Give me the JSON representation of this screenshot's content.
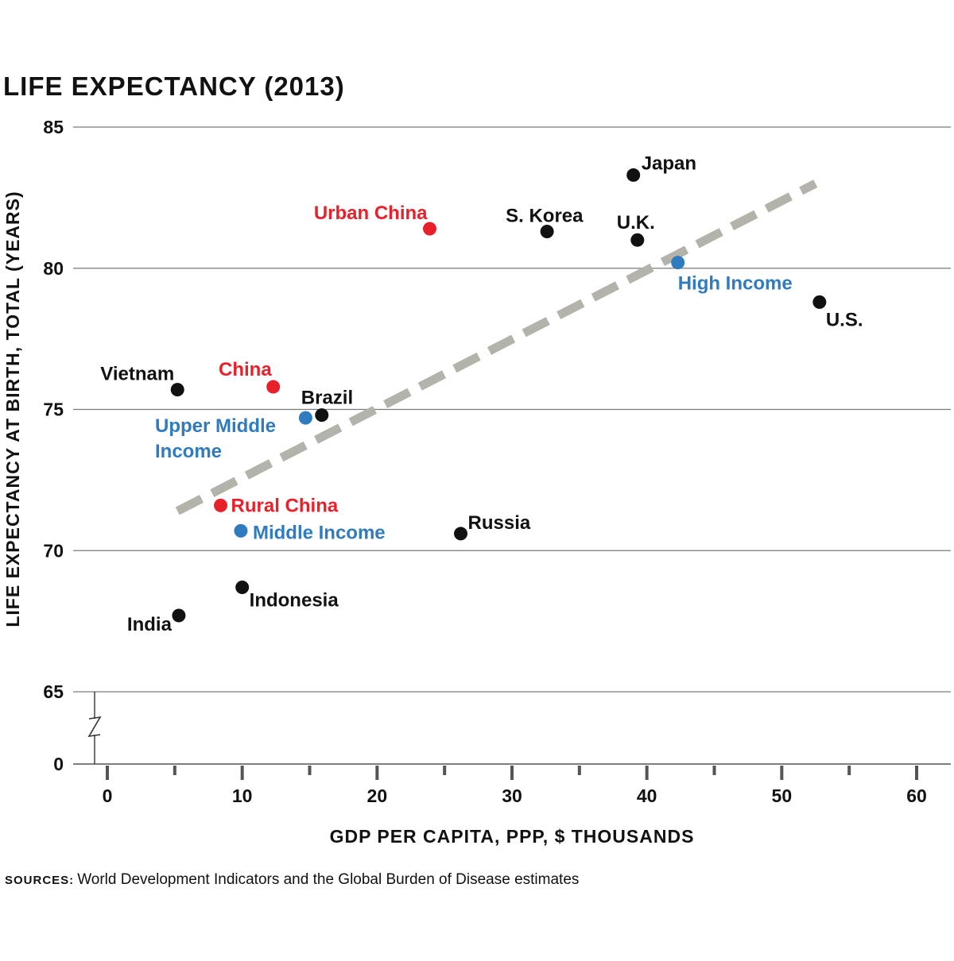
{
  "chart_data": {
    "type": "scatter",
    "title": "LIFE EXPECTANCY (2013)",
    "xlabel": "GDP PER CAPITA, PPP, $ THOUSANDS",
    "ylabel": "LIFE EXPECTANCY AT BIRTH, TOTAL (YEARS)",
    "xlim": [
      0,
      60
    ],
    "ylim": [
      65,
      85
    ],
    "y_axis_break": true,
    "x_ticks": [
      0,
      10,
      20,
      30,
      40,
      50,
      60
    ],
    "y_ticks": [
      85,
      80,
      75,
      70,
      65
    ],
    "y_break_tick": 0,
    "grid": "horizontal",
    "colors": {
      "country": "#111111",
      "china": "#e8202a",
      "income_group": "#2f7bbf",
      "trend": "#b3b3ab"
    },
    "points": [
      {
        "label": "Japan",
        "x": 39.0,
        "y": 83.3,
        "group": "country"
      },
      {
        "label": "Urban China",
        "x": 23.9,
        "y": 81.4,
        "group": "china"
      },
      {
        "label": "S. Korea",
        "x": 32.6,
        "y": 81.3,
        "group": "country"
      },
      {
        "label": "U.K.",
        "x": 39.3,
        "y": 81.0,
        "group": "country"
      },
      {
        "label": "High Income",
        "x": 42.3,
        "y": 80.2,
        "group": "income_group"
      },
      {
        "label": "U.S.",
        "x": 52.8,
        "y": 78.8,
        "group": "country"
      },
      {
        "label": "Vietnam",
        "x": 5.2,
        "y": 75.7,
        "group": "country"
      },
      {
        "label": "China",
        "x": 12.3,
        "y": 75.8,
        "group": "china"
      },
      {
        "label": "Brazil",
        "x": 15.9,
        "y": 74.8,
        "group": "country"
      },
      {
        "label": "Upper Middle Income",
        "x": 14.7,
        "y": 74.7,
        "group": "income_group"
      },
      {
        "label": "Rural China",
        "x": 8.4,
        "y": 71.6,
        "group": "china"
      },
      {
        "label": "Middle Income",
        "x": 9.9,
        "y": 70.7,
        "group": "income_group"
      },
      {
        "label": "Russia",
        "x": 26.2,
        "y": 70.6,
        "group": "country"
      },
      {
        "label": "Indonesia",
        "x": 10.0,
        "y": 68.7,
        "group": "country"
      },
      {
        "label": "India",
        "x": 5.3,
        "y": 67.7,
        "group": "country"
      }
    ],
    "trendline": {
      "x": [
        5.2,
        52.5
      ],
      "y": [
        71.4,
        83.0
      ]
    }
  },
  "source": {
    "label": "SOURCES:",
    "text": "World Development Indicators and the Global Burden of Disease estimates"
  }
}
